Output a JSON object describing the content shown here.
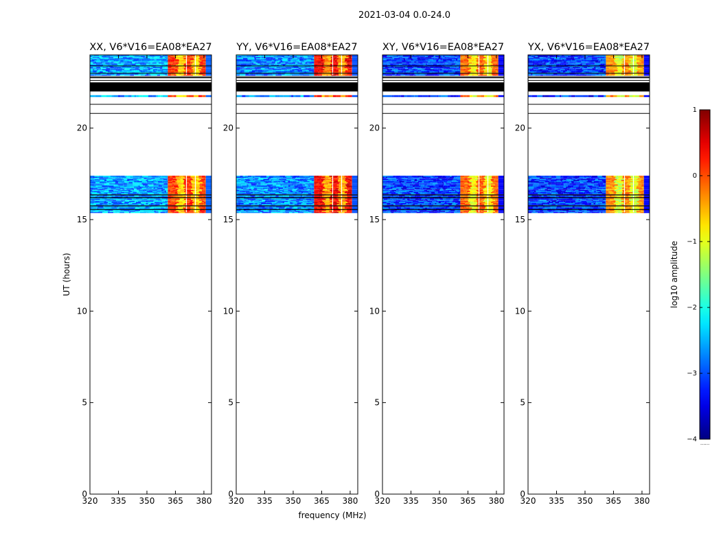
{
  "figure": {
    "suptitle": "2021-03-04 0.0-24.0",
    "ylabel": "UT (hours)",
    "xlabel": "frequency (MHz)"
  },
  "chart_data": {
    "type": "heatmap",
    "title": "2021-03-04 0.0-24.0",
    "xlabel": "frequency (MHz)",
    "ylabel": "UT (hours)",
    "xlim": [
      320,
      384
    ],
    "ylim": [
      0,
      24
    ],
    "xticks": [
      "320",
      "335",
      "350",
      "365",
      "380"
    ],
    "yticks": [
      "0",
      "5",
      "10",
      "15",
      "20"
    ],
    "grid": false,
    "panels": [
      {
        "title": "XX, V6*V16=EA08*EA27",
        "low_band_level": -2.6,
        "high_band_level": -0.2
      },
      {
        "title": "YY, V6*V16=EA08*EA27",
        "low_band_level": -2.7,
        "high_band_level": 0.1
      },
      {
        "title": "XY, V6*V16=EA08*EA27",
        "low_band_level": -3.1,
        "high_band_level": -0.4
      },
      {
        "title": "YX, V6*V16=EA08*EA27",
        "low_band_level": -3.1,
        "high_band_level": -0.6
      }
    ],
    "data_blocks_ut": [
      {
        "ut_start": 15.4,
        "ut_end": 17.4
      },
      {
        "ut_start": 22.9,
        "ut_end": 24.0
      },
      {
        "ut_start": 21.7,
        "ut_end": 21.8
      }
    ],
    "flagged_lines_ut": [
      15.55,
      15.75,
      16.2,
      16.35,
      22.3,
      22.45,
      22.6,
      22.75
    ],
    "flagged_band_ut": [
      22.0,
      22.5
    ],
    "band_split_mhz": 361,
    "colorbar": {
      "label": "log10 amplitude",
      "range": [
        -4,
        1
      ],
      "ticks": [
        "1",
        "0",
        "−1",
        "−2",
        "−3",
        "−4"
      ],
      "colormap": "jet",
      "under_label": "......"
    }
  }
}
